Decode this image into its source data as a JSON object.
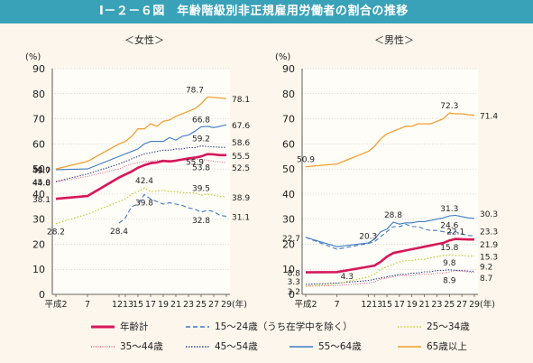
{
  "title": "Ⅰ－２－６図　年齢階級別非正規雇用労働者の割合の推移",
  "colors": {
    "total": "#d6175a",
    "age15_24": "#3e7bc4",
    "age25_34": "#c6cf3a",
    "age35_44": "#e05c8a",
    "age45_54": "#3a4a8c",
    "age55_64": "#3e7bc4",
    "age65": "#f0a030"
  },
  "chart_data": [
    {
      "type": "line",
      "title": "＜女性＞",
      "ylabel": "(%)",
      "xlabel": "(年)",
      "ylim": [
        0,
        90
      ],
      "yticks": [
        "0",
        "10",
        "20",
        "30",
        "40",
        "50",
        "60",
        "70",
        "80",
        "90"
      ],
      "xticks": [
        "平成2",
        "7",
        "12",
        "13",
        "15",
        "17",
        "19",
        "21",
        "23",
        "25",
        "27",
        "29"
      ],
      "x": [
        2,
        7,
        12,
        13,
        14,
        15,
        16,
        17,
        18,
        19,
        20,
        21,
        22,
        23,
        24,
        25,
        26,
        27,
        28,
        29
      ],
      "series": [
        {
          "key": "total",
          "name": "年齢計",
          "values": [
            38.1,
            39.2,
            46.6,
            47.8,
            49.0,
            50.5,
            51.5,
            52.3,
            52.6,
            53.2,
            53.0,
            53.3,
            53.8,
            54.2,
            54.5,
            55.0,
            55.9,
            55.8,
            55.5,
            55.5
          ]
        },
        {
          "key": "age15_24",
          "name": "15～24歳（うち在学中を除く）",
          "values": [
            null,
            null,
            28.4,
            30.5,
            35.0,
            36.0,
            39.8,
            38.0,
            37.0,
            36.0,
            36.5,
            36.0,
            35.5,
            34.5,
            34.0,
            32.8,
            33.5,
            33.0,
            31.5,
            31.1
          ]
        },
        {
          "key": "age25_34",
          "name": "25～34歳",
          "values": [
            28.2,
            32.0,
            37.0,
            38.0,
            40.0,
            41.0,
            42.4,
            41.0,
            41.2,
            41.5,
            41.0,
            41.0,
            40.5,
            40.5,
            40.5,
            39.5,
            40.0,
            39.5,
            39.0,
            38.9
          ]
        },
        {
          "key": "age35_44",
          "name": "35～44歳",
          "values": [
            44.8,
            47.0,
            50.0,
            51.0,
            52.0,
            52.5,
            53.0,
            53.0,
            53.5,
            53.5,
            53.5,
            53.0,
            53.5,
            53.5,
            53.8,
            53.8,
            53.5,
            53.0,
            52.8,
            52.5
          ]
        },
        {
          "key": "age45_54",
          "name": "45～54歳",
          "values": [
            45.0,
            48.0,
            52.0,
            53.0,
            54.0,
            55.0,
            56.0,
            56.5,
            57.0,
            57.5,
            57.5,
            58.0,
            58.0,
            58.5,
            58.5,
            59.2,
            59.0,
            58.8,
            58.6,
            58.6
          ]
        },
        {
          "key": "age55_64",
          "name": "55～64歳",
          "values": [
            49.7,
            50.0,
            55.0,
            56.0,
            57.0,
            58.0,
            60.0,
            61.0,
            61.0,
            61.0,
            62.5,
            61.5,
            63.0,
            63.5,
            65.0,
            66.8,
            67.0,
            66.5,
            67.0,
            67.6
          ]
        },
        {
          "key": "age65",
          "name": "65歳以上",
          "values": [
            50.0,
            53.0,
            60.0,
            61.0,
            63.0,
            66.0,
            66.0,
            68.0,
            67.0,
            69.0,
            69.5,
            71.0,
            72.0,
            73.0,
            74.0,
            76.0,
            78.7,
            78.5,
            78.3,
            78.1
          ]
        }
      ],
      "labels": [
        {
          "text": "50.0",
          "series": "age65",
          "idx": 0,
          "side": "left"
        },
        {
          "text": "49.7",
          "series": "age55_64",
          "idx": 0,
          "side": "left"
        },
        {
          "text": "45.0",
          "series": "age45_54",
          "idx": 0,
          "side": "left"
        },
        {
          "text": "44.8",
          "series": "age35_44",
          "idx": 0,
          "side": "left"
        },
        {
          "text": "38.1",
          "series": "total",
          "idx": 0,
          "side": "left"
        },
        {
          "text": "28.2",
          "series": "age25_34",
          "idx": 0,
          "side": "below"
        },
        {
          "text": "28.4",
          "series": "age15_24",
          "idx": 2,
          "side": "below"
        },
        {
          "text": "39.8",
          "series": "age15_24",
          "idx": 6,
          "side": "below"
        },
        {
          "text": "42.4",
          "series": "age25_34",
          "idx": 6,
          "side": "above"
        },
        {
          "text": "78.7",
          "series": "age65",
          "idx": 16,
          "side": "aboveleft"
        },
        {
          "text": "66.8",
          "series": "age55_64",
          "idx": 15,
          "side": "above"
        },
        {
          "text": "59.2",
          "series": "age45_54",
          "idx": 15,
          "side": "above"
        },
        {
          "text": "55.9",
          "series": "total",
          "idx": 16,
          "side": "belowleft"
        },
        {
          "text": "53.8",
          "series": "age35_44",
          "idx": 15,
          "side": "below"
        },
        {
          "text": "39.5",
          "series": "age25_34",
          "idx": 15,
          "side": "above"
        },
        {
          "text": "32.8",
          "series": "age15_24",
          "idx": 15,
          "side": "below"
        },
        {
          "text": "78.1",
          "series": "age65",
          "idx": 19,
          "side": "right"
        },
        {
          "text": "67.6",
          "series": "age55_64",
          "idx": 19,
          "side": "right"
        },
        {
          "text": "58.6",
          "series": "age45_54",
          "idx": 19,
          "side": "rightup"
        },
        {
          "text": "55.5",
          "series": "total",
          "idx": 19,
          "side": "right"
        },
        {
          "text": "52.5",
          "series": "age35_44",
          "idx": 19,
          "side": "rightdown"
        },
        {
          "text": "38.9",
          "series": "age25_34",
          "idx": 19,
          "side": "right"
        },
        {
          "text": "31.1",
          "series": "age15_24",
          "idx": 19,
          "side": "right"
        }
      ]
    },
    {
      "type": "line",
      "title": "＜男性＞",
      "ylabel": "(%)",
      "xlabel": "(年)",
      "ylim": [
        0,
        90
      ],
      "yticks": [
        "0",
        "10",
        "20",
        "30",
        "40",
        "50",
        "60",
        "70",
        "80",
        "90"
      ],
      "xticks": [
        "平成2",
        "7",
        "12",
        "13",
        "15",
        "17",
        "19",
        "21",
        "23",
        "25",
        "27",
        "29"
      ],
      "x": [
        2,
        7,
        12,
        13,
        14,
        15,
        16,
        17,
        18,
        19,
        20,
        21,
        22,
        23,
        24,
        25,
        26,
        27,
        28,
        29
      ],
      "series": [
        {
          "key": "total",
          "name": "年齢計",
          "values": [
            8.8,
            8.9,
            11.0,
            11.5,
            13.0,
            15.0,
            16.5,
            17.0,
            17.5,
            18.0,
            18.5,
            19.0,
            19.5,
            20.0,
            20.5,
            21.5,
            22.1,
            22.0,
            21.9,
            21.9
          ]
        },
        {
          "key": "age15_24",
          "name": "15～24歳（うち在学中を除く）",
          "values": [
            22.7,
            18.0,
            20.3,
            21.0,
            23.0,
            25.0,
            27.0,
            27.0,
            28.0,
            27.0,
            27.0,
            26.0,
            25.5,
            25.5,
            25.0,
            24.6,
            25.0,
            24.0,
            23.5,
            23.3
          ]
        },
        {
          "key": "age25_34",
          "name": "25～34歳",
          "values": [
            3.2,
            4.3,
            7.0,
            8.0,
            10.0,
            11.0,
            12.0,
            13.0,
            13.5,
            13.5,
            14.0,
            14.0,
            14.5,
            15.0,
            15.5,
            15.8,
            15.5,
            15.5,
            15.3,
            15.3
          ]
        },
        {
          "key": "age35_44",
          "name": "35～44歳",
          "values": [
            3.3,
            3.5,
            4.5,
            5.0,
            6.0,
            6.5,
            7.0,
            7.5,
            7.5,
            7.5,
            8.0,
            8.0,
            8.0,
            8.5,
            8.5,
            8.9,
            9.5,
            9.2,
            9.0,
            8.7
          ]
        },
        {
          "key": "age45_54",
          "name": "45～54歳",
          "values": [
            4.0,
            4.5,
            5.5,
            6.0,
            6.5,
            7.0,
            7.5,
            8.0,
            8.0,
            8.5,
            8.5,
            9.0,
            9.0,
            9.5,
            9.5,
            9.8,
            9.5,
            9.5,
            9.3,
            9.2
          ]
        },
        {
          "key": "age55_64",
          "name": "55～64歳",
          "values": [
            22.7,
            19.0,
            20.5,
            22.0,
            25.0,
            26.0,
            28.8,
            28.0,
            28.5,
            28.5,
            29.0,
            29.0,
            29.5,
            30.0,
            30.5,
            31.3,
            31.5,
            31.0,
            30.5,
            30.3
          ]
        },
        {
          "key": "age65",
          "name": "65歳以上",
          "values": [
            50.9,
            52.0,
            57.0,
            59.0,
            62.0,
            64.0,
            65.0,
            66.0,
            67.0,
            67.0,
            68.0,
            68.0,
            68.0,
            69.0,
            70.0,
            72.3,
            72.0,
            72.0,
            71.6,
            71.4
          ]
        }
      ],
      "labels": [
        {
          "text": "50.9",
          "series": "age65",
          "idx": 0,
          "side": "above"
        },
        {
          "text": "22.7",
          "series": "age55_64",
          "idx": 0,
          "side": "left"
        },
        {
          "text": "20.3",
          "series": "age15_24",
          "idx": 2,
          "side": "above"
        },
        {
          "text": "28.8",
          "series": "age55_64",
          "idx": 6,
          "side": "above"
        },
        {
          "text": "8.8",
          "series": "total",
          "idx": 0,
          "side": "left"
        },
        {
          "text": "4.3",
          "series": "age25_34",
          "idx": 1,
          "side": "aboveright"
        },
        {
          "text": "3.3",
          "series": "age35_44",
          "idx": 0,
          "side": "leftup"
        },
        {
          "text": "3.2",
          "series": "age25_34",
          "idx": 0,
          "side": "leftdown"
        },
        {
          "text": "72.3",
          "series": "age65",
          "idx": 15,
          "side": "above"
        },
        {
          "text": "31.3",
          "series": "age55_64",
          "idx": 15,
          "side": "above"
        },
        {
          "text": "24.6",
          "series": "age15_24",
          "idx": 15,
          "side": "above"
        },
        {
          "text": "22.1",
          "series": "total",
          "idx": 16,
          "side": "above"
        },
        {
          "text": "15.8",
          "series": "age25_34",
          "idx": 15,
          "side": "above"
        },
        {
          "text": "9.8",
          "series": "age45_54",
          "idx": 15,
          "side": "above"
        },
        {
          "text": "8.9",
          "series": "age35_44",
          "idx": 15,
          "side": "below"
        },
        {
          "text": "71.4",
          "series": "age65",
          "idx": 19,
          "side": "right"
        },
        {
          "text": "30.3",
          "series": "age55_64",
          "idx": 19,
          "side": "rightup"
        },
        {
          "text": "23.3",
          "series": "age15_24",
          "idx": 19,
          "side": "rightup"
        },
        {
          "text": "21.9",
          "series": "total",
          "idx": 19,
          "side": "rightdown"
        },
        {
          "text": "15.3",
          "series": "age25_34",
          "idx": 19,
          "side": "right"
        },
        {
          "text": "9.2",
          "series": "age45_54",
          "idx": 19,
          "side": "rightup"
        },
        {
          "text": "8.7",
          "series": "age35_44",
          "idx": 19,
          "side": "rightdown"
        }
      ]
    }
  ],
  "legend": [
    {
      "key": "total",
      "label": "年齢計",
      "style": "solid-thick"
    },
    {
      "key": "age15_24",
      "label": "15～24歳（うち在学中を除く）",
      "style": "dashed"
    },
    {
      "key": "age25_34",
      "label": "25～34歳",
      "style": "dotted"
    },
    {
      "key": "age35_44",
      "label": "35～44歳",
      "style": "dotted-fine"
    },
    {
      "key": "age45_54",
      "label": "45～54歳",
      "style": "dotted-dark"
    },
    {
      "key": "age55_64",
      "label": "55～64歳",
      "style": "solid"
    },
    {
      "key": "age65",
      "label": "65歳以上",
      "style": "solid"
    }
  ]
}
